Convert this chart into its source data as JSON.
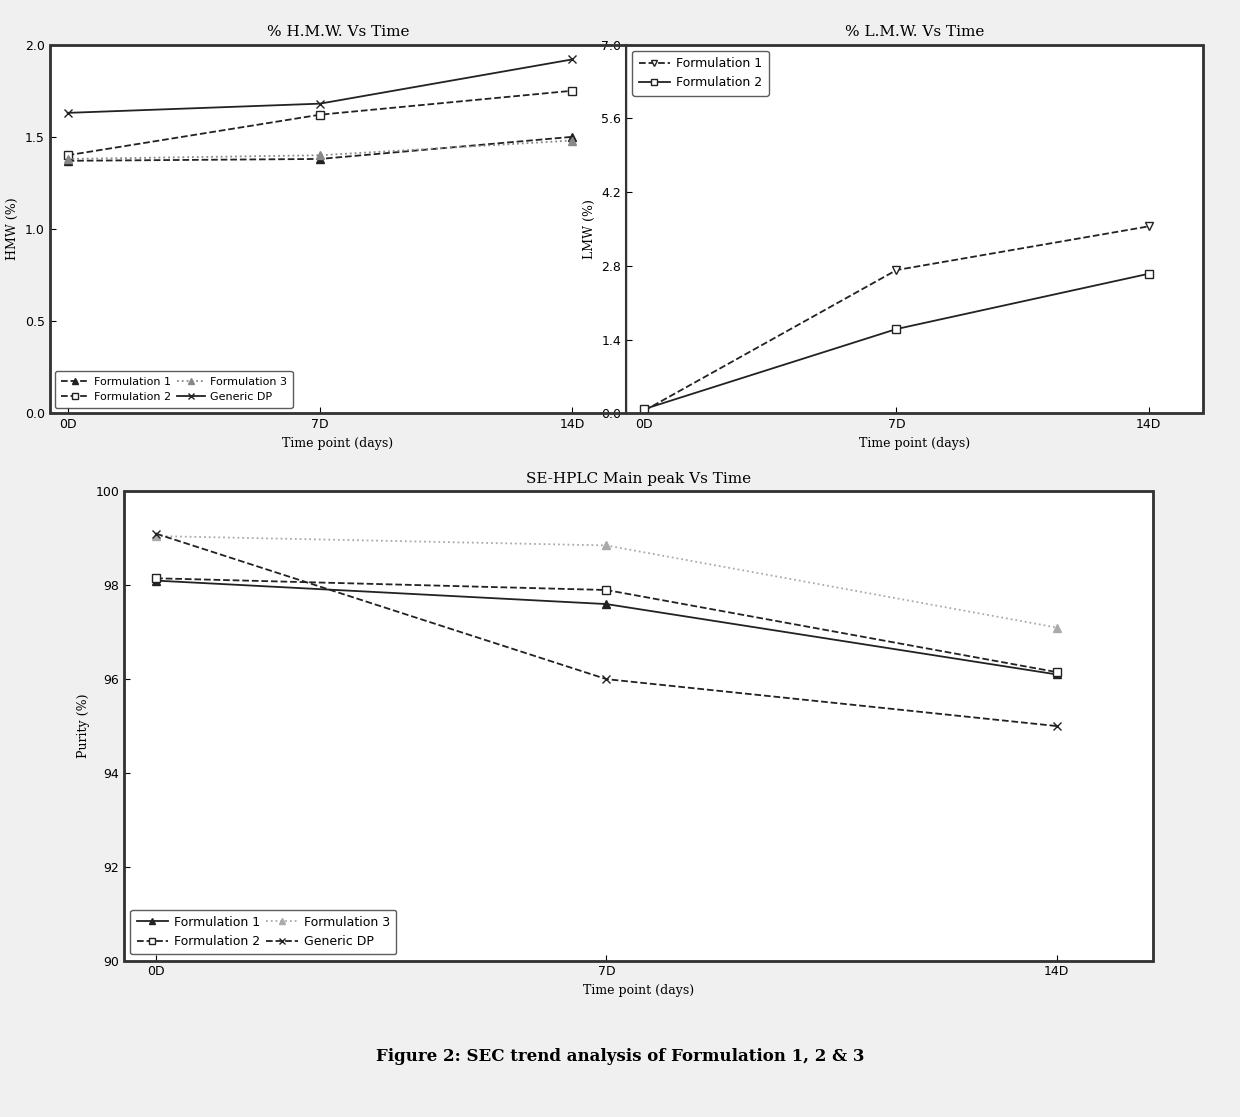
{
  "x_ticks": [
    0,
    7,
    14
  ],
  "x_tick_labels": [
    "0D",
    "7D",
    "14D"
  ],
  "x_label": "Time point (days)",
  "hmw": {
    "title": "% H.M.W. Vs Time",
    "ylabel": "HMW (%)",
    "ylim": [
      0.0,
      2.0
    ],
    "yticks": [
      0.0,
      0.5,
      1.0,
      1.5,
      2.0
    ],
    "series": {
      "Formulation 1": {
        "x": [
          0,
          7,
          14
        ],
        "y": [
          1.37,
          1.38,
          1.5
        ],
        "color": "#222222",
        "marker": "^",
        "linestyle": "--",
        "mfc": "#222222"
      },
      "Formulation 2": {
        "x": [
          0,
          7,
          14
        ],
        "y": [
          1.4,
          1.62,
          1.75
        ],
        "color": "#222222",
        "marker": "s",
        "linestyle": "--",
        "mfc": "white"
      },
      "Formulation 3": {
        "x": [
          0,
          7,
          14
        ],
        "y": [
          1.38,
          1.4,
          1.48
        ],
        "color": "#888888",
        "marker": "^",
        "linestyle": ":",
        "mfc": "#888888"
      },
      "Generic DP": {
        "x": [
          0,
          7,
          14
        ],
        "y": [
          1.63,
          1.68,
          1.92
        ],
        "color": "#222222",
        "marker": "x",
        "linestyle": "-",
        "mfc": "#222222"
      }
    },
    "legend_order": [
      "Formulation 1",
      "Formulation 2",
      "Formulation 3",
      "Generic DP"
    ],
    "legend_ncol": 2,
    "legend_loc": "lower left"
  },
  "lmw": {
    "title": "% L.M.W. Vs Time",
    "ylabel": "LMW (%)",
    "ylim": [
      0.0,
      7.0
    ],
    "yticks": [
      0.0,
      1.4,
      2.8,
      4.2,
      5.6,
      7.0
    ],
    "series": {
      "Formulation 1": {
        "x": [
          0,
          7,
          14
        ],
        "y": [
          0.05,
          2.72,
          3.55
        ],
        "color": "#222222",
        "marker": "v",
        "linestyle": "--",
        "mfc": "white"
      },
      "Formulation 2": {
        "x": [
          0,
          7,
          14
        ],
        "y": [
          0.08,
          1.6,
          2.65
        ],
        "color": "#222222",
        "marker": "s",
        "linestyle": "-",
        "mfc": "white"
      }
    },
    "legend_order": [
      "Formulation 1",
      "Formulation 2"
    ],
    "legend_ncol": 1,
    "legend_loc": "upper left"
  },
  "purity": {
    "title": "SE-HPLC Main peak Vs Time",
    "ylabel": "Purity (%)",
    "ylim": [
      90.0,
      100.0
    ],
    "yticks": [
      90.0,
      92.0,
      94.0,
      96.0,
      98.0,
      100.0
    ],
    "series": {
      "Formulation 1": {
        "x": [
          0,
          7,
          14
        ],
        "y": [
          98.1,
          97.6,
          96.1
        ],
        "color": "#222222",
        "marker": "^",
        "linestyle": "-",
        "mfc": "#222222"
      },
      "Formulation 2": {
        "x": [
          0,
          7,
          14
        ],
        "y": [
          98.15,
          97.9,
          96.15
        ],
        "color": "#222222",
        "marker": "s",
        "linestyle": "--",
        "mfc": "white"
      },
      "Formulation 3": {
        "x": [
          0,
          7,
          14
        ],
        "y": [
          99.05,
          98.85,
          97.1
        ],
        "color": "#aaaaaa",
        "marker": "^",
        "linestyle": ":",
        "mfc": "#aaaaaa"
      },
      "Generic DP": {
        "x": [
          0,
          7,
          14
        ],
        "y": [
          99.1,
          96.0,
          95.0
        ],
        "color": "#222222",
        "marker": "x",
        "linestyle": "--",
        "mfc": "#222222"
      }
    },
    "legend_order": [
      "Formulation 1",
      "Formulation 2",
      "Formulation 3",
      "Generic DP"
    ],
    "legend_ncol": 2,
    "legend_loc": "lower left"
  },
  "caption": "Figure 2: SEC trend analysis of Formulation 1, 2 & 3",
  "bg_color": "#f0f0f0",
  "plot_bg": "#ffffff"
}
